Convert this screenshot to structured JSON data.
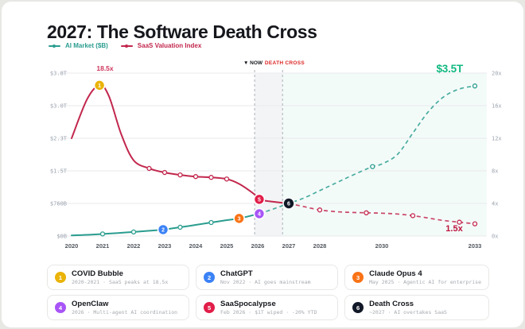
{
  "title": "2027: The Software Death Cross",
  "legend": {
    "ai": {
      "label": "AI Market ($B)",
      "color": "#2a9d8f"
    },
    "saas": {
      "label": "SaaS Valuation Index",
      "color": "#c2274d"
    }
  },
  "overlays": {
    "now": {
      "text": "▼ NOW",
      "color": "#15171c"
    },
    "death_cross": {
      "text": "DEATH CROSS",
      "color": "#dc2626"
    },
    "saas_peak": {
      "text": "18.5x",
      "color": "#d0355c"
    },
    "ai_endpoint": {
      "text": "$3.5T",
      "color": "#10b981"
    },
    "saas_endpoint": {
      "text": "1.5x",
      "color": "#be123c"
    }
  },
  "chart_data": {
    "type": "line",
    "title": "2027: The Software Death Cross",
    "x_axis": {
      "range": [
        2020,
        2033
      ],
      "tick_years": [
        2020,
        2021,
        2022,
        2023,
        2024,
        2025,
        2026,
        2027,
        2028,
        2030,
        2033
      ]
    },
    "left_axis": {
      "label": "AI Market ($B)",
      "range_billions": [
        0,
        3800
      ],
      "ticks": [
        {
          "label": "$0B",
          "value": 0
        },
        {
          "label": "$760B",
          "value": 760
        },
        {
          "label": "$1.5T",
          "value": 1520
        },
        {
          "label": "$2.3T",
          "value": 2280
        },
        {
          "label": "$3.0T",
          "value": 3040
        },
        {
          "label": "$3.8T",
          "value": 3800
        }
      ]
    },
    "right_axis": {
      "label": "SaaS Valuation Index",
      "range_multiple": [
        0,
        20
      ],
      "ticks": [
        {
          "label": "0x",
          "value": 0
        },
        {
          "label": "4x",
          "value": 4
        },
        {
          "label": "8x",
          "value": 8
        },
        {
          "label": "12x",
          "value": 12
        },
        {
          "label": "16x",
          "value": 16
        },
        {
          "label": "20x",
          "value": 20
        }
      ]
    },
    "now_line_year": 2025.9,
    "cross_line_year": 2026.8,
    "series": [
      {
        "id": "ai_market",
        "name": "AI Market ($B)",
        "axis": "left",
        "color": "#2a9d8f",
        "solid_until": 2026.05,
        "points": [
          [
            2020,
            15
          ],
          [
            2020.5,
            28
          ],
          [
            2021,
            48
          ],
          [
            2021.5,
            70
          ],
          [
            2022,
            95
          ],
          [
            2022.5,
            122
          ],
          [
            2022.95,
            150
          ],
          [
            2023.5,
            205
          ],
          [
            2024,
            260
          ],
          [
            2024.5,
            315
          ],
          [
            2025,
            370
          ],
          [
            2025.4,
            410
          ],
          [
            2026.05,
            520
          ],
          [
            2026.5,
            630
          ],
          [
            2027,
            760
          ],
          [
            2027.5,
            890
          ],
          [
            2028,
            1060
          ],
          [
            2028.5,
            1230
          ],
          [
            2029,
            1400
          ],
          [
            2029.7,
            1620
          ],
          [
            2030,
            1680
          ],
          [
            2030.5,
            1900
          ],
          [
            2031,
            2400
          ],
          [
            2031.5,
            2900
          ],
          [
            2032,
            3250
          ],
          [
            2032.5,
            3430
          ],
          [
            2033,
            3500
          ]
        ],
        "ring_markers": [
          [
            2021,
            48
          ],
          [
            2022,
            95
          ],
          [
            2023.5,
            205
          ],
          [
            2024.5,
            315
          ],
          [
            2029.7,
            1620
          ],
          [
            2033,
            3500
          ]
        ]
      },
      {
        "id": "saas_index",
        "name": "SaaS Valuation Index",
        "axis": "right",
        "color": "#c2274d",
        "solid_until": 2027,
        "points": [
          [
            2020,
            12
          ],
          [
            2020.5,
            16.8
          ],
          [
            2020.9,
            18.5
          ],
          [
            2021.2,
            17.2
          ],
          [
            2021.6,
            12.5
          ],
          [
            2022,
            9.3
          ],
          [
            2022.5,
            8.3
          ],
          [
            2023,
            7.8
          ],
          [
            2023.5,
            7.5
          ],
          [
            2024,
            7.3
          ],
          [
            2024.5,
            7.2
          ],
          [
            2025,
            7.0
          ],
          [
            2025.4,
            6.4
          ],
          [
            2025.9,
            5.1
          ],
          [
            2026.05,
            4.5
          ],
          [
            2026.5,
            4.2
          ],
          [
            2027,
            4.0
          ],
          [
            2027.5,
            3.6
          ],
          [
            2028,
            3.2
          ],
          [
            2028.5,
            3.0
          ],
          [
            2029,
            2.9
          ],
          [
            2029.5,
            2.85
          ],
          [
            2030,
            2.8
          ],
          [
            2030.5,
            2.7
          ],
          [
            2031,
            2.5
          ],
          [
            2031.5,
            2.2
          ],
          [
            2032,
            1.9
          ],
          [
            2032.5,
            1.7
          ],
          [
            2033,
            1.5
          ]
        ],
        "ring_markers": [
          [
            2022.5,
            8.3
          ],
          [
            2023,
            7.8
          ],
          [
            2023.5,
            7.5
          ],
          [
            2024,
            7.3
          ],
          [
            2024.5,
            7.2
          ],
          [
            2025,
            7.0
          ],
          [
            2028,
            3.2
          ],
          [
            2029.5,
            2.85
          ],
          [
            2031,
            2.5
          ],
          [
            2032.5,
            1.7
          ],
          [
            2033,
            1.5
          ]
        ]
      }
    ],
    "events": [
      {
        "n": 1,
        "name": "COVID Bubble",
        "year": 2020.9,
        "value": 18.5,
        "axis": "right",
        "color": "#eab308"
      },
      {
        "n": 2,
        "name": "ChatGPT",
        "year": 2022.95,
        "value": 150,
        "axis": "left",
        "color": "#3b82f6"
      },
      {
        "n": 3,
        "name": "Claude Opus 4",
        "year": 2025.4,
        "value": 410,
        "axis": "left",
        "color": "#f97316"
      },
      {
        "n": 4,
        "name": "OpenClaw",
        "year": 2026.05,
        "value": 520,
        "axis": "left",
        "color": "#a855f7"
      },
      {
        "n": 5,
        "name": "SaaSpocalypse",
        "year": 2026.05,
        "value": 4.5,
        "axis": "right",
        "color": "#e11d48"
      },
      {
        "n": 6,
        "name": "Death Cross",
        "year": 2027,
        "value": 760,
        "axis": "left",
        "color": "#111827"
      }
    ],
    "bands": {
      "now_to_cross_color": "#6b7280",
      "projection_color": "#10b981"
    }
  },
  "cards": [
    {
      "num": "1",
      "color": "#eab308",
      "name": "COVID Bubble",
      "desc": "2020-2021 · SaaS peaks at 18.5x"
    },
    {
      "num": "2",
      "color": "#3b82f6",
      "name": "ChatGPT",
      "desc": "Nov 2022 · AI goes mainstream"
    },
    {
      "num": "3",
      "color": "#f97316",
      "name": "Claude Opus 4",
      "desc": "May 2025 · Agentic AI for enterprise"
    },
    {
      "num": "4",
      "color": "#a855f7",
      "name": "OpenClaw",
      "desc": "2026 · Multi-agent AI coordination"
    },
    {
      "num": "5",
      "color": "#e11d48",
      "name": "SaaSpocalypse",
      "desc": "Feb 2026 · $1T wiped · -20% YTD"
    },
    {
      "num": "6",
      "color": "#111827",
      "name": "Death Cross",
      "desc": "~2027 · AI overtakes SaaS"
    }
  ]
}
